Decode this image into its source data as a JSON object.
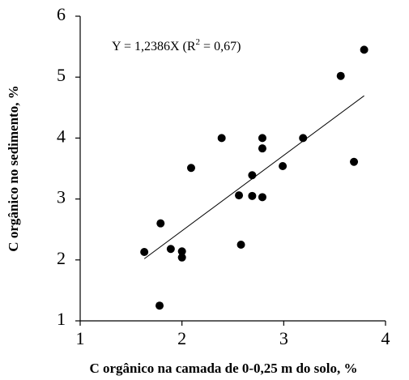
{
  "chart_data": {
    "type": "scatter",
    "x_label": "C orgânico na camada de 0-0,25 m do solo, %",
    "y_label": "C orgânico no sedimento, %",
    "annotation_parts": [
      "Y = 1,2386X (R",
      "2",
      " = 0,67)"
    ],
    "trend_slope": 1.2386,
    "x": [
      1.63,
      1.79,
      1.78,
      1.89,
      2.0,
      2.0,
      2.09,
      2.39,
      2.56,
      2.58,
      2.69,
      2.69,
      2.79,
      2.79,
      2.79,
      2.99,
      3.19,
      3.56,
      3.69,
      3.79
    ],
    "y": [
      2.13,
      2.6,
      1.25,
      2.18,
      2.14,
      2.04,
      3.51,
      4.0,
      3.06,
      2.25,
      3.39,
      3.05,
      4.0,
      3.83,
      3.03,
      3.54,
      4.0,
      5.02,
      3.61,
      5.45
    ],
    "color": "#000000",
    "xlim": [
      1,
      4
    ],
    "xticks": [
      1,
      2,
      3,
      4
    ],
    "ylim": [
      1,
      6
    ],
    "yticks": [
      1,
      2,
      3,
      4,
      5,
      6
    ]
  }
}
